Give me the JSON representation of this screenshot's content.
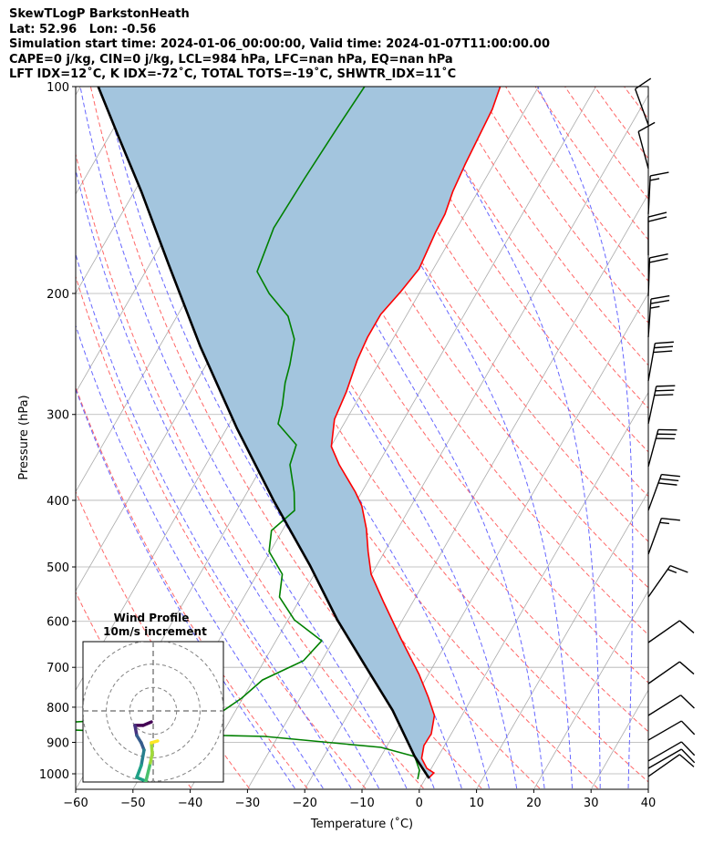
{
  "header": {
    "line1": "SkewTLogP BarkstonHeath",
    "line2": "Lat: 52.96   Lon: -0.56",
    "line3": "Simulation start time: 2024-01-06_00:00:00, Valid time: 2024-01-07T11:00:00.00",
    "line4": "CAPE=0 j/kg, CIN=0 j/kg, LCL=984 hPa, LFC=nan hPa, EQ=nan hPa",
    "line5": "LFT IDX=12˚C, K IDX=-72˚C, TOTAL TOTS=-19˚C, SHWTR_IDX=11˚C"
  },
  "chart_data": {
    "type": "line",
    "title": "SkewTLogP BarkstonHeath",
    "xlabel": "Temperature (˚C)",
    "ylabel": "Pressure (hPa)",
    "xlim": [
      -60,
      40
    ],
    "ylim": [
      1050,
      100
    ],
    "x_ticks": [
      -60,
      -50,
      -40,
      -30,
      -20,
      -10,
      0,
      10,
      20,
      30,
      40
    ],
    "y_ticks": [
      100,
      200,
      300,
      400,
      500,
      600,
      700,
      800,
      900,
      1000
    ],
    "grid": true,
    "colors": {
      "temperature": "#ff0000",
      "dewpoint": "#008000",
      "parcel": "#000000",
      "fill": "#a3c5de",
      "isotherm": "#aaaaaa",
      "dry_adiabat": "#ff6666",
      "moist_adiabat": "#6666ff"
    },
    "series": [
      {
        "name": "temperature",
        "points": [
          [
            1015,
            0.5
          ],
          [
            997,
            0.9
          ],
          [
            981.8,
            -0.8
          ],
          [
            949.5,
            -2.7
          ],
          [
            909.6,
            -3.6
          ],
          [
            874.2,
            -3.5
          ],
          [
            822.4,
            -4.8
          ],
          [
            773.7,
            -7.7
          ],
          [
            716.9,
            -11.6
          ],
          [
            634.6,
            -18.5
          ],
          [
            561.5,
            -25.2
          ],
          [
            512.3,
            -30.1
          ],
          [
            474.8,
            -32.9
          ],
          [
            439.9,
            -35.5
          ],
          [
            407.5,
            -38.6
          ],
          [
            389.2,
            -41.1
          ],
          [
            355,
            -46.7
          ],
          [
            334.1,
            -49.9
          ],
          [
            304.9,
            -52.1
          ],
          [
            278.2,
            -52.8
          ],
          [
            250,
            -54.1
          ],
          [
            231.6,
            -54.6
          ],
          [
            214.6,
            -54.6
          ],
          [
            198.8,
            -53.4
          ],
          [
            184.2,
            -52.5
          ],
          [
            163,
            -53.3
          ],
          [
            153.3,
            -53.5
          ],
          [
            142.1,
            -54.4
          ],
          [
            129.6,
            -55.0
          ],
          [
            107.9,
            -55.8
          ],
          [
            100,
            -56.7
          ]
        ]
      },
      {
        "name": "dewpoint",
        "points": [
          [
            1018,
            -1.3
          ],
          [
            987.9,
            -1.9
          ],
          [
            943.6,
            -4.1
          ],
          [
            915.2,
            -10.9
          ],
          [
            882.3,
            -32.3
          ],
          [
            879.6,
            -39.6
          ],
          [
            863.9,
            -66
          ],
          [
            850.7,
            -100
          ],
          [
            840.4,
            -66.8
          ],
          [
            817.5,
            -42.6
          ],
          [
            776.1,
            -40.2
          ],
          [
            730.3,
            -38.4
          ],
          [
            684.8,
            -33.2
          ],
          [
            640.5,
            -32
          ],
          [
            597,
            -38.9
          ],
          [
            553,
            -43.8
          ],
          [
            512.3,
            -45.6
          ],
          [
            474.8,
            -50.2
          ],
          [
            442.6,
            -51.9
          ],
          [
            413.8,
            -49.9
          ],
          [
            389.2,
            -51.8
          ],
          [
            355,
            -55.3
          ],
          [
            332.1,
            -56.2
          ],
          [
            309.5,
            -61.5
          ],
          [
            291.2,
            -62.6
          ],
          [
            269.8,
            -64.4
          ],
          [
            253.9,
            -65.4
          ],
          [
            233,
            -67.2
          ],
          [
            215.9,
            -70.6
          ],
          [
            200,
            -76.2
          ],
          [
            185.9,
            -80.5
          ],
          [
            160.6,
            -82
          ],
          [
            135.7,
            -81.6
          ],
          [
            114.7,
            -81
          ],
          [
            100,
            -80.4
          ]
        ]
      },
      {
        "name": "parcel",
        "points": [
          [
            1015,
            0.6
          ],
          [
            943.6,
            -4.1
          ],
          [
            808.6,
            -12.6
          ],
          [
            695,
            -22
          ],
          [
            597,
            -31.4
          ],
          [
            497,
            -41.7
          ],
          [
            401.3,
            -54.4
          ],
          [
            314.4,
            -68.2
          ],
          [
            238.8,
            -82.9
          ],
          [
            181.4,
            -96.7
          ],
          [
            142.1,
            -108.8
          ],
          [
            118.3,
            -118.3
          ],
          [
            100,
            -126.9
          ]
        ]
      }
    ],
    "wind_barbs": [
      {
        "p": 113.7,
        "dir": 340,
        "kt": 10
      },
      {
        "p": 131.6,
        "dir": 345,
        "kt": 10
      },
      {
        "p": 153.3,
        "dir": 3,
        "kt": 15
      },
      {
        "p": 176,
        "dir": 0,
        "kt": 20
      },
      {
        "p": 201.8,
        "dir": 2,
        "kt": 20
      },
      {
        "p": 231.6,
        "dir": 4,
        "kt": 25
      },
      {
        "p": 268.2,
        "dir": 10,
        "kt": 30
      },
      {
        "p": 309.5,
        "dir": 12,
        "kt": 30
      },
      {
        "p": 357.3,
        "dir": 15,
        "kt": 30
      },
      {
        "p": 413.8,
        "dir": 20,
        "kt": 30
      },
      {
        "p": 479.2,
        "dir": 20,
        "kt": 15
      },
      {
        "p": 553,
        "dir": 35,
        "kt": 15
      },
      {
        "p": 644.2,
        "dir": 55,
        "kt": 10
      },
      {
        "p": 739.4,
        "dir": 55,
        "kt": 10
      },
      {
        "p": 822.4,
        "dir": 58,
        "kt": 10
      },
      {
        "p": 893.3,
        "dir": 60,
        "kt": 10
      },
      {
        "p": 958,
        "dir": 60,
        "kt": 10
      },
      {
        "p": 981.8,
        "dir": 60,
        "kt": 10
      },
      {
        "p": 1009,
        "dir": 55,
        "kt": 10
      }
    ],
    "hodograph": {
      "title_line1": "Wind Profile",
      "title_line2": "10m/s increment",
      "ring_increment_ms": 10,
      "points_uv": [
        [
          -0.8,
          -4.7
        ],
        [
          -4.3,
          -6.2
        ],
        [
          -7.8,
          -6.2
        ],
        [
          -7.0,
          -10.5
        ],
        [
          -5.1,
          -13.6
        ],
        [
          -3.9,
          -16.7
        ],
        [
          -5.1,
          -23.3
        ],
        [
          -7.0,
          -28.4
        ],
        [
          -3.1,
          -30.0
        ],
        [
          -1.2,
          -22.2
        ],
        [
          -0.4,
          -18.3
        ],
        [
          -0.8,
          -13.6
        ],
        [
          1.9,
          -12.8
        ]
      ]
    }
  }
}
